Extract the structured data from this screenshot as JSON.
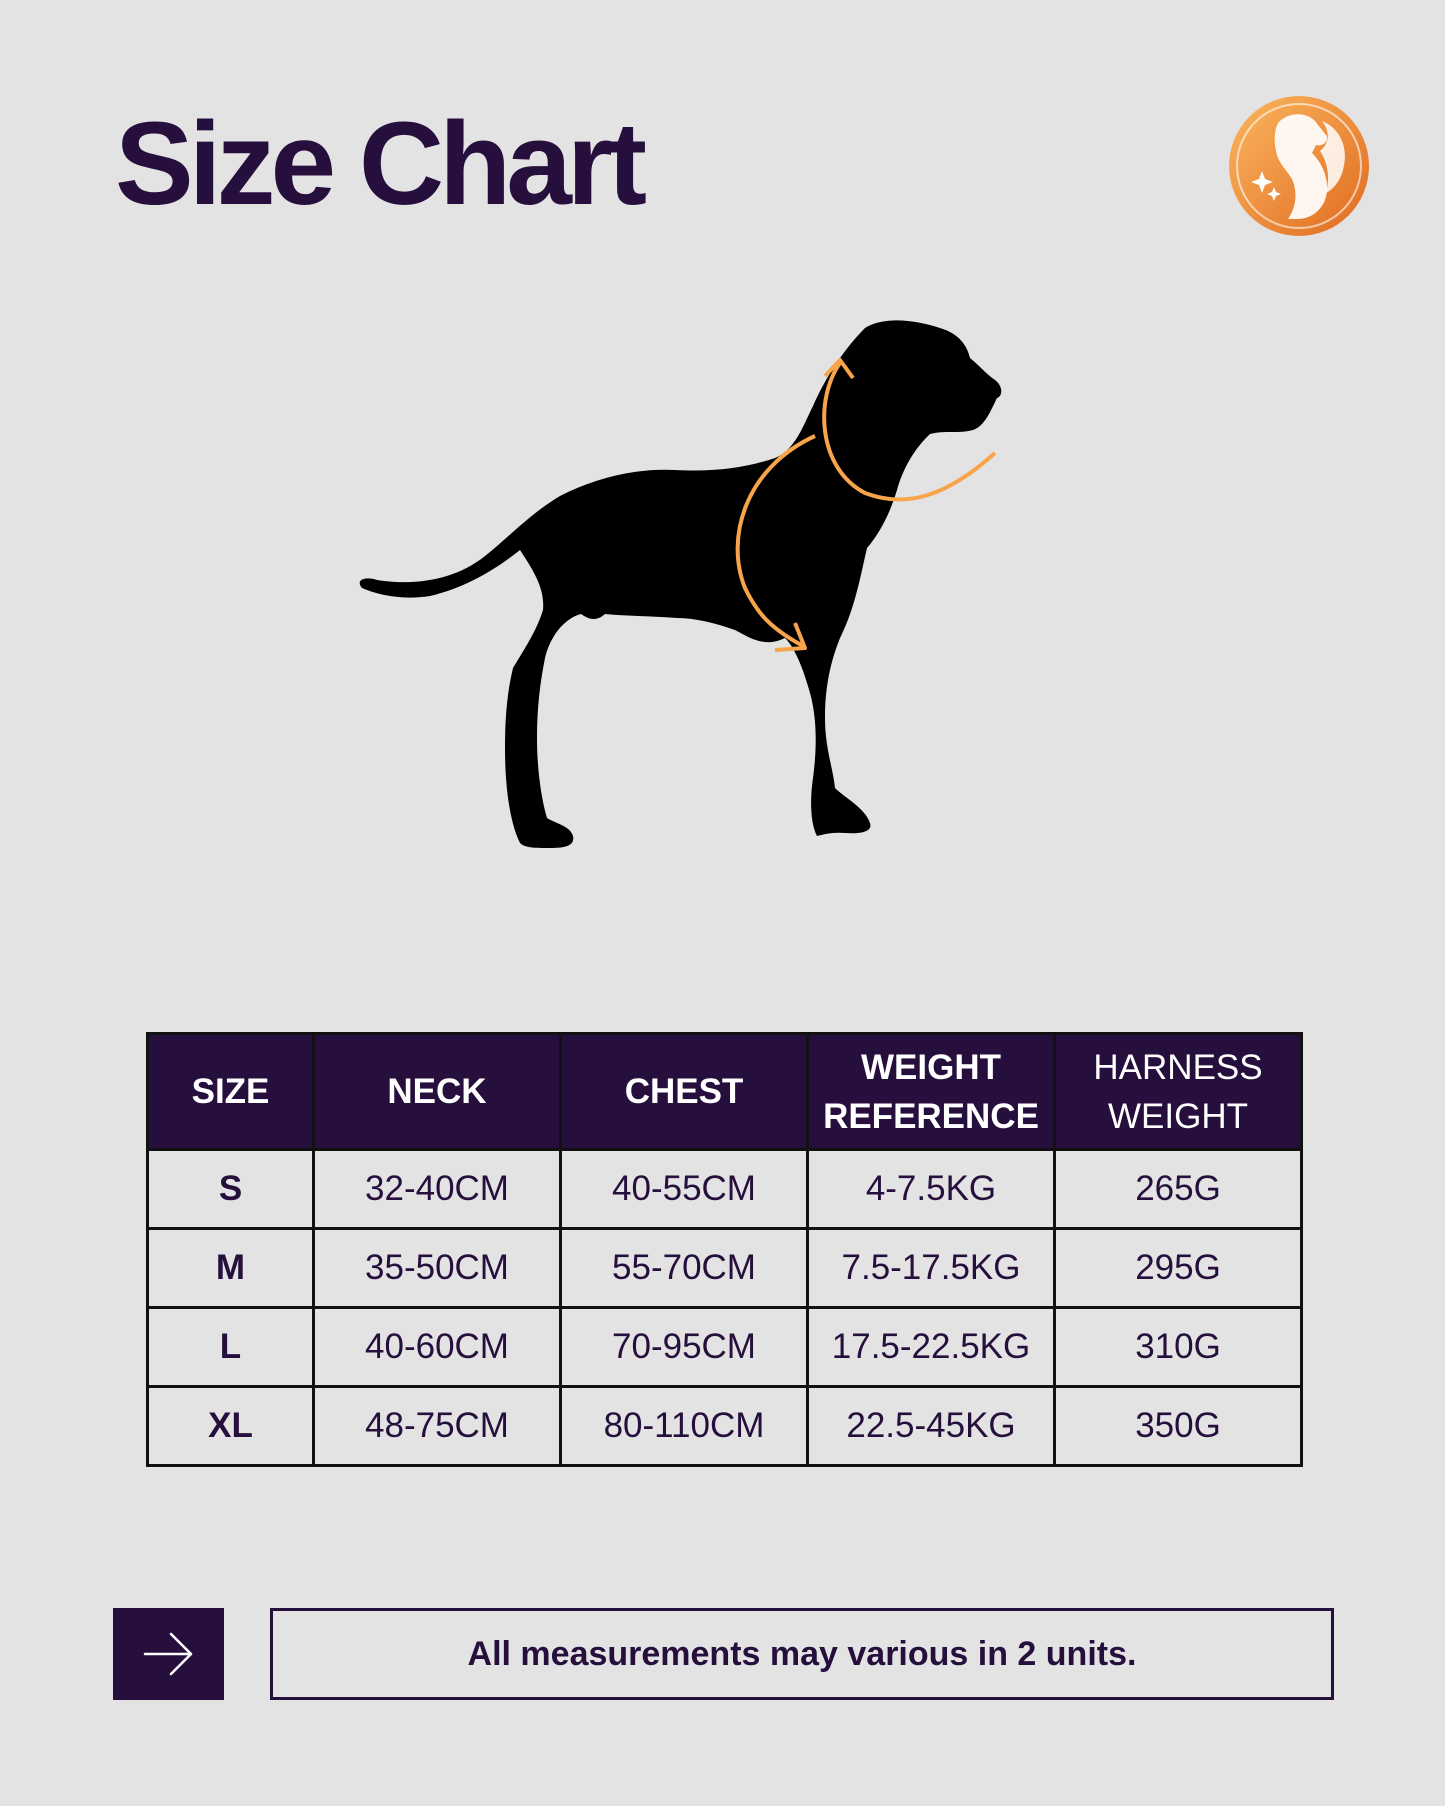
{
  "title": "Size Chart",
  "icons": {
    "logo": "dog-logo-icon",
    "arrow": "arrow-right-icon",
    "dog": "dog-silhouette-icon"
  },
  "colors": {
    "background": "#e3e3e3",
    "primary": "#260f3d",
    "accent": "#f7a44a"
  },
  "table": {
    "headers": [
      {
        "line1": "SIZE",
        "line2": ""
      },
      {
        "line1": "NECK",
        "line2": ""
      },
      {
        "line1": "CHEST",
        "line2": ""
      },
      {
        "line1": "WEIGHT",
        "line2": "REFERENCE"
      },
      {
        "line1": "HARNESS",
        "line2": "WEIGHT"
      }
    ],
    "rows": [
      [
        "S",
        "32-40CM",
        "40-55CM",
        "4-7.5KG",
        "265G"
      ],
      [
        "M",
        "35-50CM",
        "55-70CM",
        "7.5-17.5KG",
        "295G"
      ],
      [
        "L",
        "40-60CM",
        "70-95CM",
        "17.5-22.5KG",
        "310G"
      ],
      [
        "XL",
        "48-75CM",
        "80-110CM",
        "22.5-45KG",
        "350G"
      ]
    ]
  },
  "footer": {
    "note": "All measurements may various in 2 units."
  }
}
